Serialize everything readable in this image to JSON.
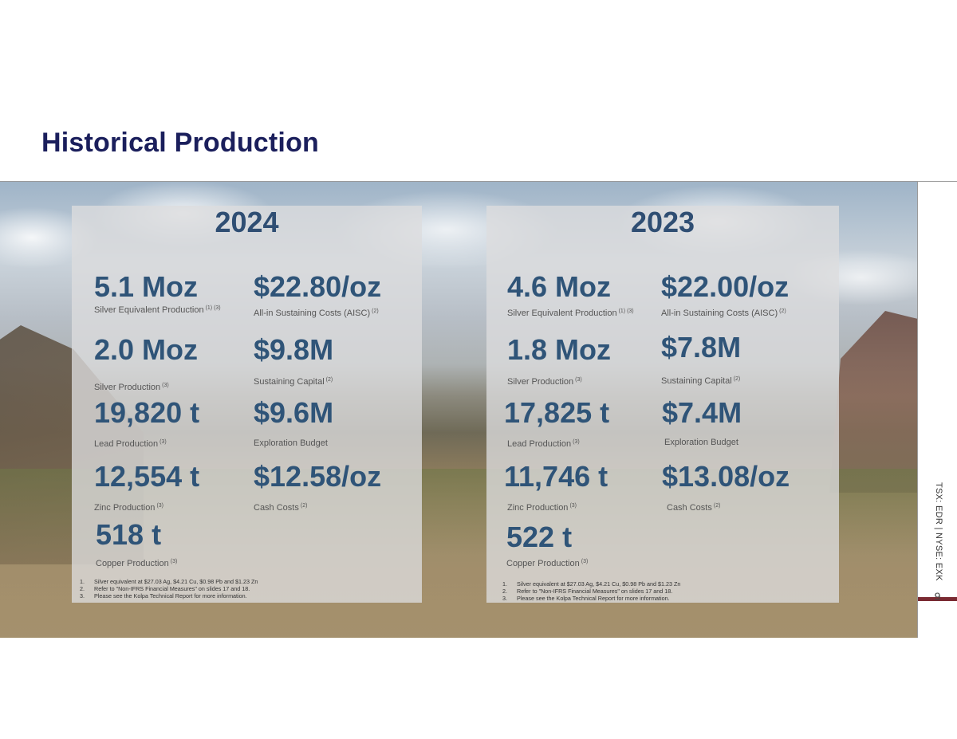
{
  "title": "Historical Production",
  "sidebar": {
    "ticker": "TSX: EDR | NYSE: EXK",
    "page_number": "9"
  },
  "colors": {
    "title": "#1b1f5c",
    "values": "#2f5478",
    "accent": "#7a2a32"
  },
  "p2024": {
    "year": "2024",
    "m1": {
      "value": "5.1 Moz",
      "label": "Silver Equivalent Production",
      "note": "(1) (3)"
    },
    "m2": {
      "value": "$22.80/oz",
      "label": "All-in Sustaining Costs (AISC)",
      "note": "(2)"
    },
    "m3": {
      "value": "2.0 Moz",
      "label": "Silver Production",
      "note": "(3)"
    },
    "m4": {
      "value": "$9.8M",
      "label": "Sustaining Capital",
      "note": "(2)"
    },
    "m5": {
      "value": "19,820 t",
      "label": "Lead Production",
      "note": "(3)"
    },
    "m6": {
      "value": "$9.6M",
      "label": "Exploration Budget",
      "note": ""
    },
    "m7": {
      "value": "12,554 t",
      "label": "Zinc Production",
      "note": "(3)"
    },
    "m8": {
      "value": "$12.58/oz",
      "label": "Cash Costs",
      "note": "(2)"
    },
    "m9": {
      "value": "518 t",
      "label": "Copper Production",
      "note": "(3)"
    },
    "notes": [
      {
        "num": "1.",
        "text": "Silver equivalent at $27.03 Ag, $4.21 Cu, $0.98 Pb and $1.23 Zn"
      },
      {
        "num": "2.",
        "text": "Refer to \"Non-IFRS Financial Measures\" on slides 17  and 18."
      },
      {
        "num": "3.",
        "text": "Please see the Kolpa Technical Report for more information."
      }
    ]
  },
  "p2023": {
    "year": "2023",
    "m1": {
      "value": "4.6 Moz",
      "label": "Silver Equivalent Production",
      "note": "(1) (3)"
    },
    "m2": {
      "value": "$22.00/oz",
      "label": "All-in Sustaining Costs (AISC)",
      "note": "(2)"
    },
    "m3": {
      "value": "1.8 Moz",
      "label": "Silver Production",
      "note": "(3)"
    },
    "m4": {
      "value": "$7.8M",
      "label": "Sustaining Capital",
      "note": "(2)"
    },
    "m5": {
      "value": "17,825 t",
      "label": "Lead Production",
      "note": "(3)"
    },
    "m6": {
      "value": "$7.4M",
      "label": "Exploration Budget",
      "note": ""
    },
    "m7": {
      "value": "11,746 t",
      "label": "Zinc Production",
      "note": "(3)"
    },
    "m8": {
      "value": "$13.08/oz",
      "label": "Cash Costs",
      "note": "(2)"
    },
    "m9": {
      "value": "522 t",
      "label": "Copper Production",
      "note": "(3)"
    },
    "notes": [
      {
        "num": "1.",
        "text": "Silver equivalent at $27.03 Ag, $4.21 Cu, $0.98 Pb and $1.23 Zn"
      },
      {
        "num": "2.",
        "text": "Refer to \"Non-IFRS Financial Measures\" on slides 17 and 18."
      },
      {
        "num": "3.",
        "text": "Please see the Kolpa Technical Report for more information."
      }
    ]
  }
}
